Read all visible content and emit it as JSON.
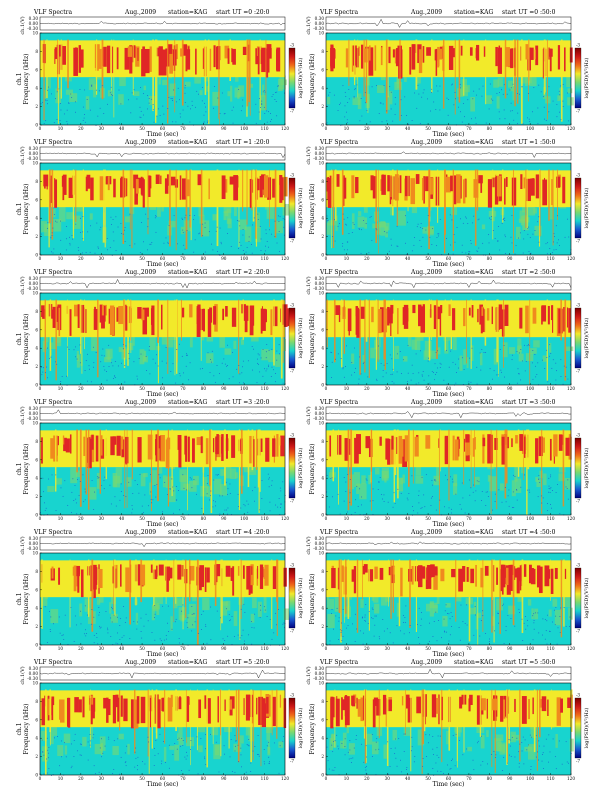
{
  "colors": {
    "background": "#18d4cf",
    "noise_blue": "#1a58d0",
    "band_yellow": "#f2ea2a",
    "band_red": "#e02626",
    "band_orange": "#f08a1e",
    "lower_green": "#7ad870",
    "colorbar": [
      "#7a0000",
      "#d01818",
      "#f06a1a",
      "#f2ea2a",
      "#7ad870",
      "#18d4cf",
      "#1a58d0",
      "#000080"
    ]
  },
  "chart_data": [
    {
      "type": "heatmap",
      "title": "VLF Spectra",
      "date": "Aug.,2009",
      "station": "station=KAG",
      "start_label": "start  UT =0 :20:0",
      "ch_ylabel": "ch.1(V)",
      "ch_ticks": [
        "0.30",
        "0.00",
        "-0.30"
      ],
      "ylabel_outer": "ch.1",
      "ylabel": "Frequency (kHz)",
      "xlabel": "Time (sec)",
      "xticks": [
        0,
        10,
        20,
        30,
        40,
        50,
        60,
        70,
        80,
        90,
        100,
        110,
        120
      ],
      "xlim": [
        0,
        120
      ],
      "yticks": [
        0,
        2,
        4,
        6,
        8,
        10
      ],
      "ylim": [
        0,
        10
      ],
      "colorbar_label": "log(PSD)(V²/Hz)",
      "colorbar_ticks": [
        "-3",
        "-7"
      ]
    },
    {
      "type": "heatmap",
      "title": "VLF Spectra",
      "date": "Aug.,2009",
      "station": "station=KAG",
      "start_label": "start  UT =0 :50:0",
      "ch_ylabel": "ch.1(V)",
      "ch_ticks": [
        "0.30",
        "0.00",
        "-0.30"
      ],
      "ylabel_outer": "",
      "ylabel": "Frequency (kHz)",
      "xlabel": "Time (sec)",
      "xticks": [
        0,
        10,
        20,
        30,
        40,
        50,
        60,
        70,
        80,
        90,
        100,
        110,
        120
      ],
      "xlim": [
        0,
        120
      ],
      "yticks": [
        0,
        2,
        4,
        6,
        8,
        10
      ],
      "ylim": [
        0,
        10
      ],
      "colorbar_label": "log(PSD)(V²/Hz)",
      "colorbar_ticks": [
        "-3",
        "-7"
      ]
    },
    {
      "type": "heatmap",
      "title": "VLF Spectra",
      "date": "Aug.,2009",
      "station": "station=KAG",
      "start_label": "start  UT =1 :20:0",
      "ch_ylabel": "ch.1(V)",
      "ch_ticks": [
        "0.30",
        "0.00",
        "-0.30"
      ],
      "ylabel_outer": "ch.1",
      "ylabel": "Frequency (kHz)",
      "xlabel": "Time (sec)",
      "xticks": [
        0,
        10,
        20,
        30,
        40,
        50,
        60,
        70,
        80,
        90,
        100,
        110,
        120
      ],
      "xlim": [
        0,
        120
      ],
      "yticks": [
        0,
        2,
        4,
        6,
        8,
        10
      ],
      "ylim": [
        0,
        10
      ],
      "colorbar_label": "log(PSD)(V²/Hz)",
      "colorbar_ticks": [
        "-3",
        "-7"
      ]
    },
    {
      "type": "heatmap",
      "title": "VLF Spectra",
      "date": "Aug.,2009",
      "station": "station=KAG",
      "start_label": "start  UT =1 :50:0",
      "ch_ylabel": "ch.1(V)",
      "ch_ticks": [
        "0.30",
        "0.00",
        "-0.30"
      ],
      "ylabel_outer": "",
      "ylabel": "Frequency (kHz)",
      "xlabel": "Time (sec)",
      "xticks": [
        0,
        10,
        20,
        30,
        40,
        50,
        60,
        70,
        80,
        90,
        100,
        110,
        120
      ],
      "xlim": [
        0,
        120
      ],
      "yticks": [
        0,
        2,
        4,
        6,
        8,
        10
      ],
      "ylim": [
        0,
        10
      ],
      "colorbar_label": "log(PSD)(V²/Hz)",
      "colorbar_ticks": [
        "-3",
        "-7"
      ]
    },
    {
      "type": "heatmap",
      "title": "VLF Spectra",
      "date": "Aug.,2009",
      "station": "station=KAG",
      "start_label": "start  UT =2 :20:0",
      "ch_ylabel": "ch.1(V)",
      "ch_ticks": [
        "0.30",
        "0.00",
        "-0.30"
      ],
      "ylabel_outer": "ch.1",
      "ylabel": "Frequency (kHz)",
      "xlabel": "Time (sec)",
      "xticks": [
        0,
        10,
        20,
        30,
        40,
        50,
        60,
        70,
        80,
        90,
        100,
        110,
        120
      ],
      "xlim": [
        0,
        120
      ],
      "yticks": [
        0,
        2,
        4,
        6,
        8,
        10
      ],
      "ylim": [
        0,
        10
      ],
      "colorbar_label": "log(PSD)(V²/Hz)",
      "colorbar_ticks": [
        "-3",
        "-7"
      ]
    },
    {
      "type": "heatmap",
      "title": "VLF Spectra",
      "date": "Aug.,2009",
      "station": "station=KAG",
      "start_label": "start  UT =2 :50:0",
      "ch_ylabel": "ch.1(V)",
      "ch_ticks": [
        "0.30",
        "0.00",
        "-0.30"
      ],
      "ylabel_outer": "",
      "ylabel": "Frequency (kHz)",
      "xlabel": "Time (sec)",
      "xticks": [
        0,
        10,
        20,
        30,
        40,
        50,
        60,
        70,
        80,
        90,
        100,
        110,
        120
      ],
      "xlim": [
        0,
        120
      ],
      "yticks": [
        0,
        2,
        4,
        6,
        8,
        10
      ],
      "ylim": [
        0,
        10
      ],
      "colorbar_label": "log(PSD)(V²/Hz)",
      "colorbar_ticks": [
        "-3",
        "-7"
      ]
    },
    {
      "type": "heatmap",
      "title": "VLF Spectra",
      "date": "Aug.,2009",
      "station": "station=KAG",
      "start_label": "start  UT =3 :20:0",
      "ch_ylabel": "ch.1(V)",
      "ch_ticks": [
        "0.30",
        "0.00",
        "-0.30"
      ],
      "ylabel_outer": "ch.1",
      "ylabel": "Frequency (kHz)",
      "xlabel": "Time (sec)",
      "xticks": [
        0,
        10,
        20,
        30,
        40,
        50,
        60,
        70,
        80,
        90,
        100,
        110,
        120
      ],
      "xlim": [
        0,
        120
      ],
      "yticks": [
        0,
        2,
        4,
        6,
        8,
        10
      ],
      "ylim": [
        0,
        10
      ],
      "colorbar_label": "log(PSD)(V²/Hz)",
      "colorbar_ticks": [
        "-3",
        "-7"
      ]
    },
    {
      "type": "heatmap",
      "title": "VLF Spectra",
      "date": "Aug.,2009",
      "station": "station=KAG",
      "start_label": "start  UT =3 :50:0",
      "ch_ylabel": "ch.1(V)",
      "ch_ticks": [
        "0.30",
        "0.00",
        "-0.30"
      ],
      "ylabel_outer": "",
      "ylabel": "Frequency (kHz)",
      "xlabel": "Time (sec)",
      "xticks": [
        0,
        10,
        20,
        30,
        40,
        50,
        60,
        70,
        80,
        90,
        100,
        110,
        120
      ],
      "xlim": [
        0,
        120
      ],
      "yticks": [
        0,
        2,
        4,
        6,
        8,
        10
      ],
      "ylim": [
        0,
        10
      ],
      "colorbar_label": "log(PSD)(V²/Hz)",
      "colorbar_ticks": [
        "-3",
        "-7"
      ]
    },
    {
      "type": "heatmap",
      "title": "VLF Spectra",
      "date": "Aug.,2009",
      "station": "station=KAG",
      "start_label": "start  UT =4 :20:0",
      "ch_ylabel": "ch.1(V)",
      "ch_ticks": [
        "0.30",
        "0.00",
        "-0.30"
      ],
      "ylabel_outer": "ch.1",
      "ylabel": "Frequency (kHz)",
      "xlabel": "Time (sec)",
      "xticks": [
        0,
        10,
        20,
        30,
        40,
        50,
        60,
        70,
        80,
        90,
        100,
        110,
        120
      ],
      "xlim": [
        0,
        120
      ],
      "yticks": [
        0,
        2,
        4,
        6,
        8,
        10
      ],
      "ylim": [
        0,
        10
      ],
      "colorbar_label": "log(PSD)(V²/Hz)",
      "colorbar_ticks": [
        "-3",
        "-7"
      ]
    },
    {
      "type": "heatmap",
      "title": "VLF Spectra",
      "date": "Aug.,2009",
      "station": "station=KAG",
      "start_label": "start  UT =4 :50:0",
      "ch_ylabel": "ch.1(V)",
      "ch_ticks": [
        "0.30",
        "0.00",
        "-0.30"
      ],
      "ylabel_outer": "",
      "ylabel": "Frequency (kHz)",
      "xlabel": "Time (sec)",
      "xticks": [
        0,
        10,
        20,
        30,
        40,
        50,
        60,
        70,
        80,
        90,
        100,
        110,
        120
      ],
      "xlim": [
        0,
        120
      ],
      "yticks": [
        0,
        2,
        4,
        6,
        8,
        10
      ],
      "ylim": [
        0,
        10
      ],
      "colorbar_label": "log(PSD)(V²/Hz)",
      "colorbar_ticks": [
        "-3",
        "-7"
      ]
    },
    {
      "type": "heatmap",
      "title": "VLF Spectra",
      "date": "Aug.,2009",
      "station": "station=KAG",
      "start_label": "start  UT =5 :20:0",
      "ch_ylabel": "ch.1(V)",
      "ch_ticks": [
        "0.30",
        "0.00",
        "-0.30"
      ],
      "ylabel_outer": "ch.1",
      "ylabel": "Frequency (kHz)",
      "xlabel": "Time (sec)",
      "xticks": [
        0,
        10,
        20,
        30,
        40,
        50,
        60,
        70,
        80,
        90,
        100,
        110,
        120
      ],
      "xlim": [
        0,
        120
      ],
      "yticks": [
        0,
        2,
        4,
        6,
        8,
        10
      ],
      "ylim": [
        0,
        10
      ],
      "colorbar_label": "log(PSD)(V²/Hz)",
      "colorbar_ticks": [
        "-3",
        "-7"
      ]
    },
    {
      "type": "heatmap",
      "title": "VLF Spectra",
      "date": "Aug.,2009",
      "station": "station=KAG",
      "start_label": "start  UT =5 :50:0",
      "ch_ylabel": "ch.1(V)",
      "ch_ticks": [
        "0.30",
        "0.00",
        "-0.30"
      ],
      "ylabel_outer": "",
      "ylabel": "Frequency (kHz)",
      "xlabel": "Time (sec)",
      "xticks": [
        0,
        10,
        20,
        30,
        40,
        50,
        60,
        70,
        80,
        90,
        100,
        110,
        120
      ],
      "xlim": [
        0,
        120
      ],
      "yticks": [
        0,
        2,
        4,
        6,
        8,
        10
      ],
      "ylim": [
        0,
        10
      ],
      "colorbar_label": "log(PSD)(V²/Hz)",
      "colorbar_ticks": [
        "-3",
        "-7"
      ]
    }
  ]
}
